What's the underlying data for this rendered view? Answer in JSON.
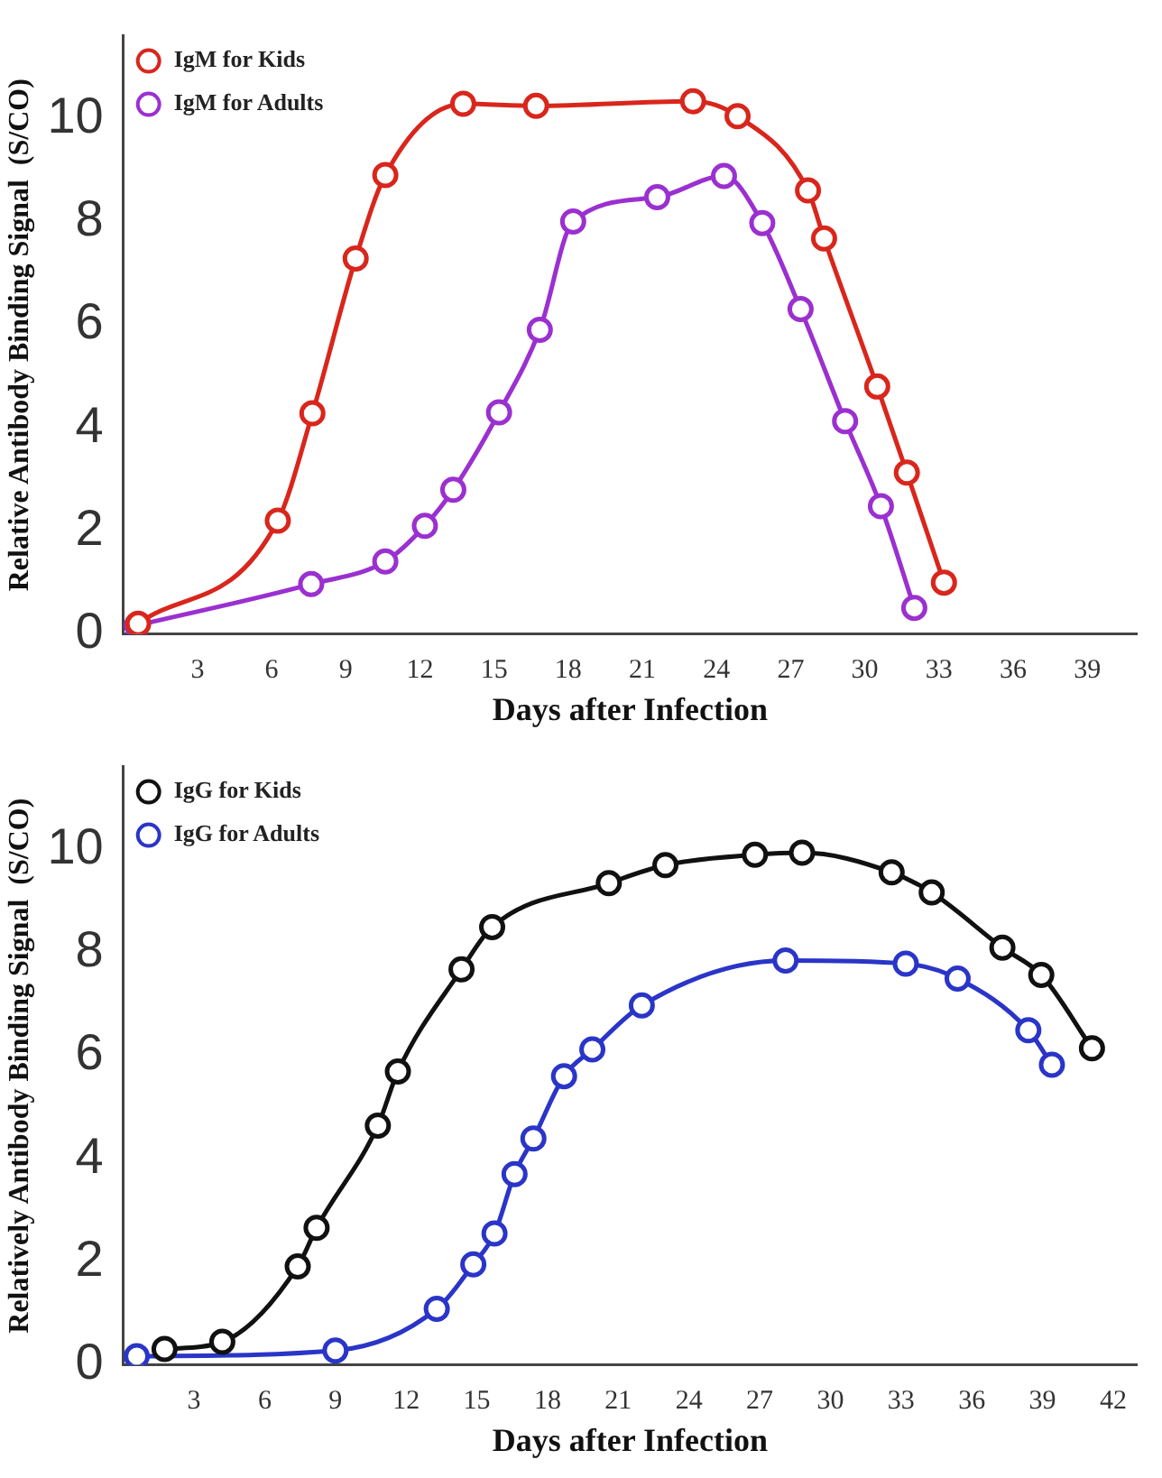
{
  "chart_data": [
    {
      "type": "line",
      "xlabel": "Days after Infection",
      "ylabel": "Relative Antibody Binding Signal  (S/CO)",
      "xlim": [
        0,
        41
      ],
      "xticks": [
        3,
        6,
        9,
        12,
        15,
        18,
        21,
        24,
        27,
        30,
        33,
        36,
        39
      ],
      "ylim": [
        0,
        11.6
      ],
      "yticks": [
        0,
        2,
        4,
        6,
        8,
        10
      ],
      "grid": false,
      "legend": "top left",
      "marker": "circle",
      "series": [
        {
          "name": "IgM for Kids",
          "color": "#d9261c",
          "x": [
            0.6,
            6.25,
            7.65,
            9.4,
            10.6,
            13.75,
            16.7,
            23.05,
            24.85,
            27.7,
            28.35,
            30.5,
            31.7,
            33.2
          ],
          "values": [
            0.2,
            2.2,
            4.28,
            7.28,
            8.9,
            10.28,
            10.24,
            10.33,
            10.04,
            8.6,
            7.67,
            4.8,
            3.13,
            1.0
          ]
        },
        {
          "name": "IgM for Adults",
          "color": "#9b30d0",
          "x": [
            0.55,
            7.6,
            10.6,
            12.2,
            13.35,
            15.2,
            16.85,
            18.2,
            21.6,
            24.3,
            25.85,
            27.4,
            29.2,
            30.65,
            32.0
          ],
          "values": [
            0.17,
            0.97,
            1.41,
            2.1,
            2.8,
            4.3,
            5.9,
            8.0,
            8.47,
            8.88,
            7.97,
            6.3,
            4.13,
            2.48,
            0.51
          ]
        }
      ]
    },
    {
      "type": "line",
      "xlabel": "Days after Infection",
      "ylabel": "Relatively Antibody Binding Signal  (S/CO)",
      "xlim": [
        0,
        43
      ],
      "xticks": [
        3,
        6,
        9,
        12,
        15,
        18,
        21,
        24,
        27,
        30,
        33,
        36,
        39,
        42
      ],
      "ylim": [
        0,
        11.6
      ],
      "yticks": [
        0,
        2,
        4,
        6,
        8,
        10
      ],
      "grid": false,
      "legend": "top left",
      "marker": "circle",
      "series": [
        {
          "name": "IgG for Kids",
          "color": "#111111",
          "x": [
            1.75,
            4.2,
            7.4,
            8.2,
            10.8,
            11.65,
            14.35,
            15.65,
            20.6,
            23.0,
            26.8,
            28.8,
            32.6,
            34.3,
            37.3,
            38.95,
            41.1
          ],
          "values": [
            0.31,
            0.45,
            1.91,
            2.66,
            4.64,
            5.69,
            7.67,
            8.49,
            9.34,
            9.69,
            9.89,
            9.93,
            9.55,
            9.16,
            8.09,
            7.56,
            6.14
          ]
        },
        {
          "name": "IgG for Adults",
          "color": "#2a35c8",
          "x": [
            0.57,
            9.0,
            13.3,
            14.85,
            15.75,
            16.6,
            17.4,
            18.7,
            19.9,
            22.0,
            28.1,
            33.2,
            35.4,
            38.4,
            39.4
          ],
          "values": [
            0.17,
            0.28,
            1.09,
            1.95,
            2.55,
            3.7,
            4.39,
            5.6,
            6.12,
            6.97,
            7.84,
            7.78,
            7.49,
            6.49,
            5.82
          ]
        }
      ]
    }
  ]
}
